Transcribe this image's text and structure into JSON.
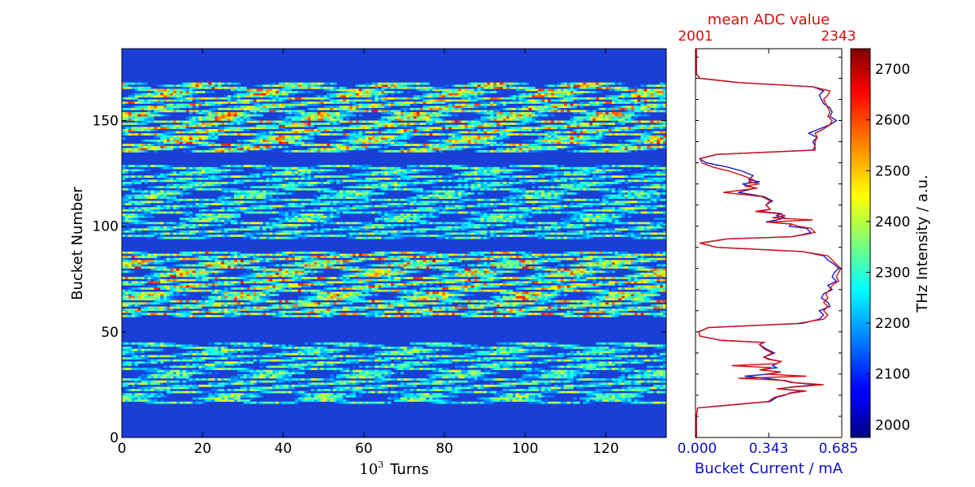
{
  "chart_data": [
    {
      "type": "heatmap",
      "xlabel_base": "10",
      "xlabel_exp": "3",
      "xlabel_unit": "Turns",
      "ylabel": "Bucket Number",
      "xlim": [
        0,
        135
      ],
      "ylim": [
        0,
        184
      ],
      "x_ticks": [
        "0",
        "20",
        "40",
        "60",
        "80",
        "100",
        "120"
      ],
      "y_ticks": [
        "0",
        "50",
        "100",
        "150"
      ],
      "filled_bucket_ranges": [
        [
          16,
          45
        ],
        [
          57,
          88
        ],
        [
          94,
          129
        ],
        [
          135,
          168
        ]
      ],
      "colormap": "jet",
      "colorbar_label": "THz Intensity / a.u.",
      "colorbar_range": [
        1975,
        2740
      ],
      "colorbar_ticks": [
        "2000",
        "2100",
        "2200",
        "2300",
        "2400",
        "2500",
        "2600",
        "2700"
      ]
    },
    {
      "type": "line",
      "orientation": "vertical-profile",
      "top_axis_label": "mean ADC value",
      "top_axis_ticks": [
        "2001",
        "2343"
      ],
      "bottom_axis_label": "Bucket Current / mA",
      "bottom_axis_ticks": [
        "0.000",
        "0.343",
        "0.685"
      ],
      "xlim": [
        0,
        0.685
      ],
      "ylim": [
        0,
        184
      ],
      "series": [
        {
          "color": "#1a1ac8",
          "points": [
            [
              0,
              0.004
            ],
            [
              10,
              0.004
            ],
            [
              14,
              0.01
            ],
            [
              15,
              0.12
            ],
            [
              17,
              0.35
            ],
            [
              19,
              0.38
            ],
            [
              20,
              0.42
            ],
            [
              21,
              0.44
            ],
            [
              22,
              0.5
            ],
            [
              23,
              0.39
            ],
            [
              24,
              0.46
            ],
            [
              25,
              0.57
            ],
            [
              26,
              0.45
            ],
            [
              27,
              0.41
            ],
            [
              28,
              0.33
            ],
            [
              29,
              0.23
            ],
            [
              30,
              0.34
            ],
            [
              31,
              0.4
            ],
            [
              32,
              0.3
            ],
            [
              33,
              0.38
            ],
            [
              34,
              0.36
            ],
            [
              36,
              0.4
            ],
            [
              37,
              0.35
            ],
            [
              38,
              0.32
            ],
            [
              40,
              0.37
            ],
            [
              42,
              0.33
            ],
            [
              44,
              0.3
            ],
            [
              45,
              0.32
            ],
            [
              46,
              0.12
            ],
            [
              48,
              0.02
            ],
            [
              50,
              0.015
            ],
            [
              52,
              0.06
            ],
            [
              54,
              0.5
            ],
            [
              56,
              0.58
            ],
            [
              58,
              0.6
            ],
            [
              60,
              0.58
            ],
            [
              62,
              0.63
            ],
            [
              64,
              0.62
            ],
            [
              66,
              0.59
            ],
            [
              68,
              0.6
            ],
            [
              70,
              0.64
            ],
            [
              72,
              0.62
            ],
            [
              74,
              0.66
            ],
            [
              76,
              0.64
            ],
            [
              78,
              0.65
            ],
            [
              80,
              0.67
            ],
            [
              82,
              0.65
            ],
            [
              84,
              0.62
            ],
            [
              86,
              0.6
            ],
            [
              88,
              0.5
            ],
            [
              90,
              0.1
            ],
            [
              92,
              0.02
            ],
            [
              94,
              0.15
            ],
            [
              95,
              0.45
            ],
            [
              96,
              0.5
            ],
            [
              97,
              0.54
            ],
            [
              98,
              0.53
            ],
            [
              99,
              0.52
            ],
            [
              100,
              0.44
            ],
            [
              101,
              0.45
            ],
            [
              102,
              0.33
            ],
            [
              103,
              0.38
            ],
            [
              104,
              0.42
            ],
            [
              105,
              0.38
            ],
            [
              106,
              0.4
            ],
            [
              107,
              0.3
            ],
            [
              108,
              0.35
            ],
            [
              110,
              0.33
            ],
            [
              112,
              0.36
            ],
            [
              114,
              0.32
            ],
            [
              116,
              0.2
            ],
            [
              118,
              0.28
            ],
            [
              120,
              0.22
            ],
            [
              121,
              0.3
            ],
            [
              122,
              0.25
            ],
            [
              124,
              0.27
            ],
            [
              126,
              0.22
            ],
            [
              128,
              0.15
            ],
            [
              130,
              0.05
            ],
            [
              132,
              0.02
            ],
            [
              134,
              0.1
            ],
            [
              136,
              0.55
            ],
            [
              138,
              0.56
            ],
            [
              140,
              0.55
            ],
            [
              142,
              0.57
            ],
            [
              144,
              0.53
            ],
            [
              146,
              0.58
            ],
            [
              148,
              0.63
            ],
            [
              150,
              0.66
            ],
            [
              152,
              0.63
            ],
            [
              154,
              0.64
            ],
            [
              156,
              0.63
            ],
            [
              158,
              0.6
            ],
            [
              160,
              0.59
            ],
            [
              162,
              0.58
            ],
            [
              164,
              0.6
            ],
            [
              166,
              0.55
            ],
            [
              168,
              0.2
            ],
            [
              170,
              0.02
            ],
            [
              172,
              0.004
            ],
            [
              184,
              0.004
            ]
          ]
        },
        {
          "color": "#d41010",
          "points": [
            [
              0,
              0.004
            ],
            [
              10,
              0.004
            ],
            [
              14,
              0.01
            ],
            [
              15,
              0.12
            ],
            [
              17,
              0.34
            ],
            [
              19,
              0.37
            ],
            [
              20,
              0.41
            ],
            [
              21,
              0.45
            ],
            [
              22,
              0.52
            ],
            [
              23,
              0.38
            ],
            [
              24,
              0.47
            ],
            [
              25,
              0.6
            ],
            [
              26,
              0.46
            ],
            [
              27,
              0.42
            ],
            [
              28,
              0.2
            ],
            [
              29,
              0.52
            ],
            [
              30,
              0.33
            ],
            [
              31,
              0.4
            ],
            [
              32,
              0.3
            ],
            [
              33,
              0.36
            ],
            [
              34,
              0.17
            ],
            [
              35,
              0.38
            ],
            [
              36,
              0.4
            ],
            [
              37,
              0.34
            ],
            [
              38,
              0.32
            ],
            [
              40,
              0.36
            ],
            [
              42,
              0.32
            ],
            [
              44,
              0.3
            ],
            [
              45,
              0.32
            ],
            [
              46,
              0.12
            ],
            [
              48,
              0.02
            ],
            [
              50,
              0.015
            ],
            [
              52,
              0.06
            ],
            [
              54,
              0.48
            ],
            [
              56,
              0.6
            ],
            [
              58,
              0.62
            ],
            [
              60,
              0.6
            ],
            [
              62,
              0.62
            ],
            [
              64,
              0.6
            ],
            [
              66,
              0.62
            ],
            [
              68,
              0.61
            ],
            [
              70,
              0.63
            ],
            [
              72,
              0.64
            ],
            [
              74,
              0.67
            ],
            [
              76,
              0.66
            ],
            [
              78,
              0.67
            ],
            [
              80,
              0.68
            ],
            [
              82,
              0.66
            ],
            [
              84,
              0.64
            ],
            [
              86,
              0.62
            ],
            [
              88,
              0.5
            ],
            [
              90,
              0.1
            ],
            [
              92,
              0.02
            ],
            [
              94,
              0.15
            ],
            [
              95,
              0.45
            ],
            [
              96,
              0.51
            ],
            [
              97,
              0.56
            ],
            [
              98,
              0.55
            ],
            [
              99,
              0.54
            ],
            [
              100,
              0.48
            ],
            [
              101,
              0.45
            ],
            [
              102,
              0.34
            ],
            [
              103,
              0.55
            ],
            [
              104,
              0.36
            ],
            [
              105,
              0.42
            ],
            [
              106,
              0.38
            ],
            [
              107,
              0.28
            ],
            [
              108,
              0.35
            ],
            [
              110,
              0.33
            ],
            [
              112,
              0.35
            ],
            [
              114,
              0.31
            ],
            [
              116,
              0.13
            ],
            [
              118,
              0.29
            ],
            [
              119,
              0.23
            ],
            [
              120,
              0.3
            ],
            [
              121,
              0.25
            ],
            [
              122,
              0.27
            ],
            [
              124,
              0.22
            ],
            [
              126,
              0.16
            ],
            [
              128,
              0.08
            ],
            [
              130,
              0.03
            ],
            [
              132,
              0.02
            ],
            [
              134,
              0.1
            ],
            [
              136,
              0.56
            ],
            [
              138,
              0.56
            ],
            [
              140,
              0.56
            ],
            [
              142,
              0.57
            ],
            [
              144,
              0.56
            ],
            [
              146,
              0.6
            ],
            [
              148,
              0.63
            ],
            [
              150,
              0.64
            ],
            [
              152,
              0.62
            ],
            [
              154,
              0.63
            ],
            [
              156,
              0.62
            ],
            [
              158,
              0.61
            ],
            [
              160,
              0.6
            ],
            [
              162,
              0.62
            ],
            [
              164,
              0.63
            ],
            [
              166,
              0.55
            ],
            [
              168,
              0.2
            ],
            [
              170,
              0.02
            ],
            [
              172,
              0.004
            ],
            [
              184,
              0.004
            ]
          ]
        }
      ]
    }
  ]
}
